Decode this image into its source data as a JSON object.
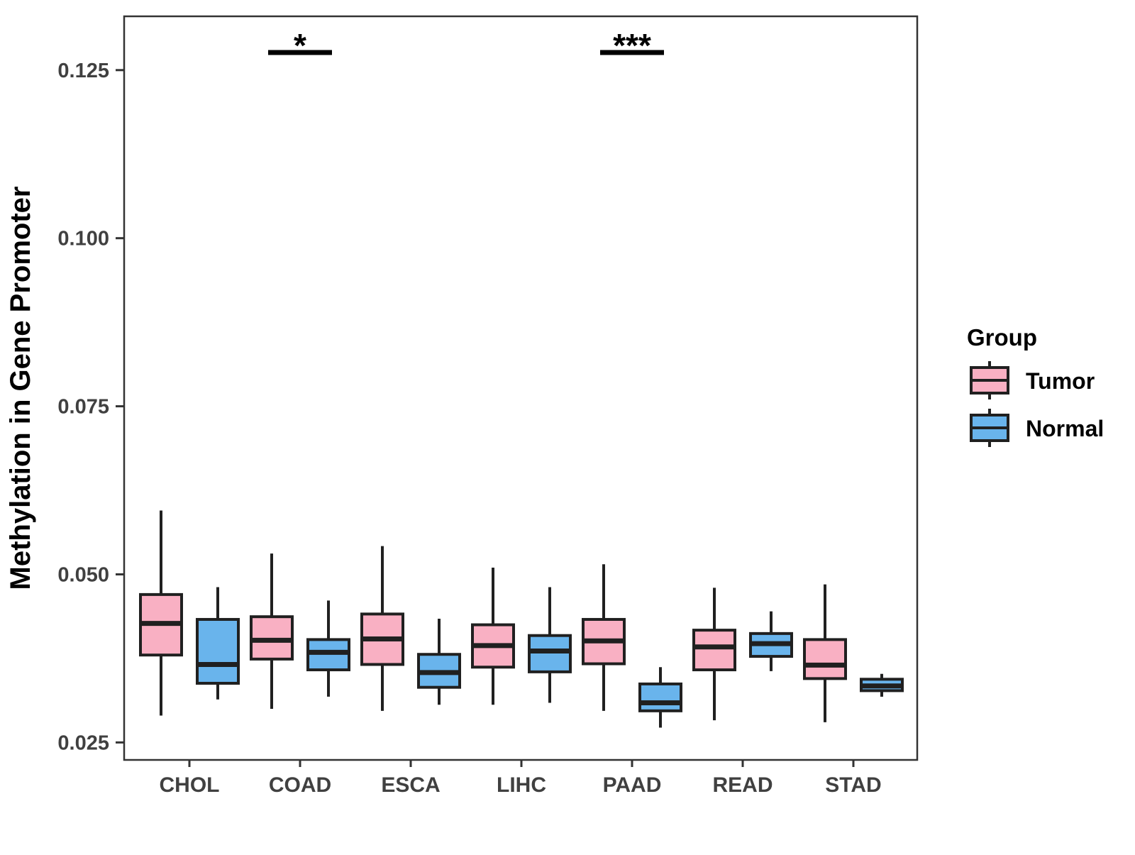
{
  "figure": {
    "legend": {
      "title": "Group",
      "items": [
        {
          "label": "Tumor",
          "color": "#F9B0C3"
        },
        {
          "label": "Normal",
          "color": "#69B4EC"
        }
      ]
    }
  },
  "chart_data": {
    "type": "boxplot",
    "title": "",
    "xlabel": "",
    "ylabel": "Methylation in Gene Promoter",
    "ylim": [
      0.0224,
      0.133
    ],
    "grid": false,
    "legend_position": "right",
    "yticks": [
      0.025,
      0.05,
      0.075,
      0.1,
      0.125
    ],
    "ytick_labels": [
      "0.025",
      "0.050",
      "0.075",
      "0.100",
      "0.125"
    ],
    "categories": [
      "CHOL",
      "COAD",
      "ESCA",
      "LIHC",
      "PAAD",
      "READ",
      "STAD"
    ],
    "series": [
      {
        "name": "Tumor",
        "color": "#F9B0C3",
        "boxes": [
          {
            "category": "CHOL",
            "low": 0.029,
            "q1": 0.038,
            "median": 0.0427,
            "q3": 0.047,
            "high": 0.0595
          },
          {
            "category": "COAD",
            "low": 0.03,
            "q1": 0.0374,
            "median": 0.0402,
            "q3": 0.0437,
            "high": 0.0531
          },
          {
            "category": "ESCA",
            "low": 0.0297,
            "q1": 0.0366,
            "median": 0.0404,
            "q3": 0.0441,
            "high": 0.0542
          },
          {
            "category": "LIHC",
            "low": 0.0306,
            "q1": 0.0362,
            "median": 0.0394,
            "q3": 0.0425,
            "high": 0.051
          },
          {
            "category": "PAAD",
            "low": 0.0297,
            "q1": 0.0367,
            "median": 0.0401,
            "q3": 0.0433,
            "high": 0.0515
          },
          {
            "category": "READ",
            "low": 0.0283,
            "q1": 0.0358,
            "median": 0.0392,
            "q3": 0.0417,
            "high": 0.048
          },
          {
            "category": "STAD",
            "low": 0.028,
            "q1": 0.0345,
            "median": 0.0365,
            "q3": 0.0403,
            "high": 0.0485
          }
        ]
      },
      {
        "name": "Normal",
        "color": "#69B4EC",
        "boxes": [
          {
            "category": "CHOL",
            "low": 0.0314,
            "q1": 0.0338,
            "median": 0.0366,
            "q3": 0.0433,
            "high": 0.0481
          },
          {
            "category": "COAD",
            "low": 0.0318,
            "q1": 0.0358,
            "median": 0.0384,
            "q3": 0.0403,
            "high": 0.0461
          },
          {
            "category": "ESCA",
            "low": 0.0306,
            "q1": 0.0332,
            "median": 0.0354,
            "q3": 0.0381,
            "high": 0.0434
          },
          {
            "category": "LIHC",
            "low": 0.0309,
            "q1": 0.0355,
            "median": 0.0386,
            "q3": 0.0409,
            "high": 0.0481
          },
          {
            "category": "PAAD",
            "low": 0.0272,
            "q1": 0.0297,
            "median": 0.0309,
            "q3": 0.0337,
            "high": 0.0362
          },
          {
            "category": "READ",
            "low": 0.0356,
            "q1": 0.0378,
            "median": 0.0397,
            "q3": 0.0412,
            "high": 0.0445
          },
          {
            "category": "STAD",
            "low": 0.0318,
            "q1": 0.0327,
            "median": 0.0334,
            "q3": 0.0344,
            "high": 0.0352
          }
        ]
      }
    ],
    "significance": [
      {
        "category": "COAD",
        "label": "*"
      },
      {
        "category": "PAAD",
        "label": "***"
      }
    ]
  }
}
